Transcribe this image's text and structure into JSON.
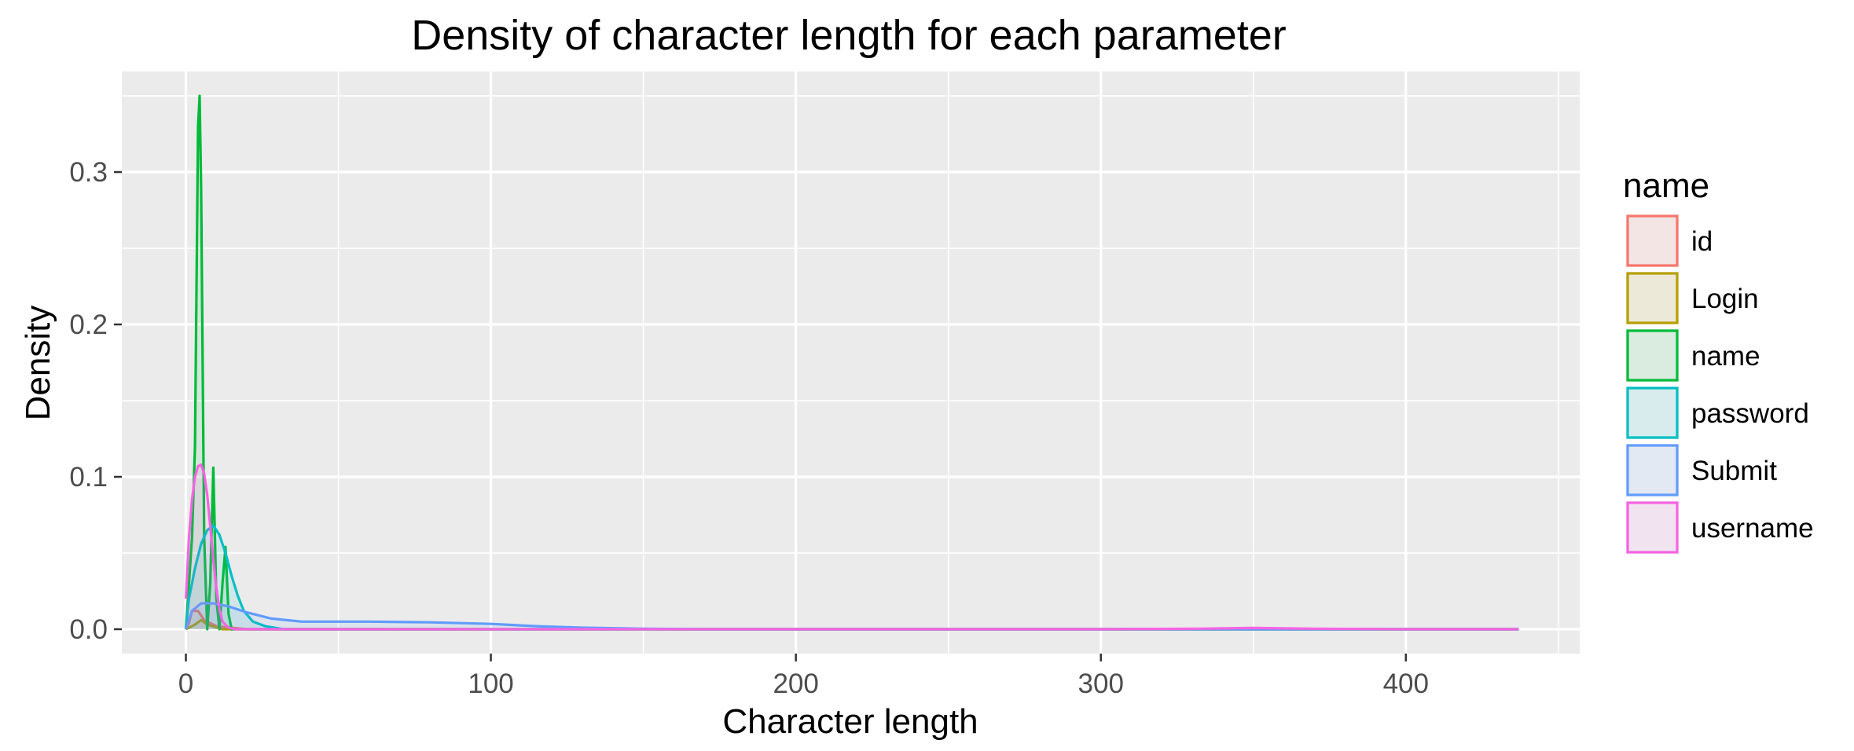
{
  "chart_data": {
    "type": "area",
    "title": "Density of character length for each parameter",
    "xlabel": "Character length",
    "ylabel": "Density",
    "xlim": [
      -21,
      457
    ],
    "ylim": [
      -0.016,
      0.366
    ],
    "x_ticks": [
      0,
      100,
      200,
      300,
      400
    ],
    "x_tick_labels": [
      "0",
      "100",
      "200",
      "300",
      "400"
    ],
    "y_ticks": [
      0.0,
      0.1,
      0.2,
      0.3
    ],
    "y_tick_labels": [
      "0.0",
      "0.1",
      "0.2",
      "0.3"
    ],
    "grid": true,
    "legend": {
      "title": "name",
      "position": "right",
      "entries": [
        "id",
        "Login",
        "name",
        "password",
        "Submit",
        "username"
      ]
    },
    "series": [
      {
        "name": "id",
        "color": "#F8766D",
        "points": [
          [
            0,
            0
          ],
          [
            1,
            0.004
          ],
          [
            2,
            0.012
          ],
          [
            4,
            0.012
          ],
          [
            6,
            0.006
          ],
          [
            10,
            0.002
          ],
          [
            20,
            0
          ],
          [
            437,
            0
          ]
        ]
      },
      {
        "name": "Login",
        "color": "#B79F00",
        "points": [
          [
            0,
            0
          ],
          [
            3,
            0.003
          ],
          [
            5,
            0.006
          ],
          [
            7,
            0.003
          ],
          [
            12,
            0
          ],
          [
            437,
            0
          ]
        ]
      },
      {
        "name": "name",
        "color": "#00BA38",
        "points": [
          [
            0,
            0
          ],
          [
            1,
            0.03
          ],
          [
            2,
            0.06
          ],
          [
            3,
            0.12
          ],
          [
            4,
            0.33
          ],
          [
            4.5,
            0.35
          ],
          [
            5,
            0.29
          ],
          [
            6,
            0.06
          ],
          [
            7,
            0.0
          ],
          [
            8,
            0.03
          ],
          [
            9,
            0.106
          ],
          [
            10,
            0.02
          ],
          [
            11,
            0.0
          ],
          [
            12,
            0.03
          ],
          [
            13,
            0.054
          ],
          [
            14,
            0.01
          ],
          [
            15,
            0.0
          ],
          [
            437,
            0
          ]
        ]
      },
      {
        "name": "password",
        "color": "#00BFC4",
        "points": [
          [
            0,
            0
          ],
          [
            1,
            0.02
          ],
          [
            3,
            0.04
          ],
          [
            5,
            0.056
          ],
          [
            7,
            0.065
          ],
          [
            9,
            0.068
          ],
          [
            11,
            0.062
          ],
          [
            13,
            0.05
          ],
          [
            15,
            0.035
          ],
          [
            17,
            0.022
          ],
          [
            19,
            0.012
          ],
          [
            22,
            0.005
          ],
          [
            26,
            0.002
          ],
          [
            32,
            0
          ],
          [
            437,
            0
          ]
        ]
      },
      {
        "name": "Submit",
        "color": "#619CFF",
        "points": [
          [
            0,
            0
          ],
          [
            2,
            0.012
          ],
          [
            5,
            0.017
          ],
          [
            9,
            0.017
          ],
          [
            14,
            0.015
          ],
          [
            20,
            0.011
          ],
          [
            28,
            0.007
          ],
          [
            38,
            0.005
          ],
          [
            60,
            0.005
          ],
          [
            80,
            0.0045
          ],
          [
            100,
            0.0035
          ],
          [
            115,
            0.002
          ],
          [
            130,
            0.001
          ],
          [
            150,
            0.0003
          ],
          [
            170,
            0
          ],
          [
            437,
            0
          ]
        ]
      },
      {
        "name": "username",
        "color": "#F564E3",
        "points": [
          [
            0,
            0.02
          ],
          [
            1,
            0.06
          ],
          [
            2,
            0.085
          ],
          [
            3,
            0.1
          ],
          [
            4,
            0.107
          ],
          [
            5,
            0.108
          ],
          [
            6,
            0.102
          ],
          [
            7,
            0.088
          ],
          [
            8,
            0.068
          ],
          [
            9,
            0.046
          ],
          [
            10,
            0.027
          ],
          [
            11,
            0.013
          ],
          [
            12,
            0.005
          ],
          [
            14,
            0.001
          ],
          [
            16,
            0
          ],
          [
            300,
            0
          ],
          [
            330,
            0.0003
          ],
          [
            350,
            0.0008
          ],
          [
            370,
            0.0003
          ],
          [
            400,
            0
          ],
          [
            437,
            0
          ]
        ]
      }
    ]
  }
}
